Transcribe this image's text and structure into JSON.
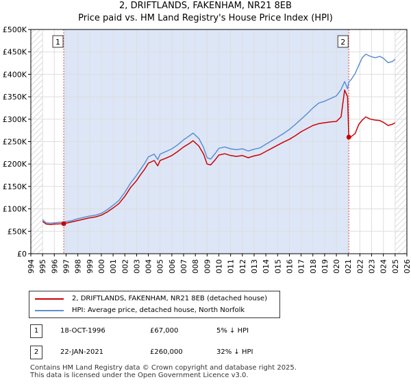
{
  "title_line1": "2, DRIFTLANDS, FAKENHAM, NR21 8EB",
  "title_line2": "Price paid vs. HM Land Registry's House Price Index (HPI)",
  "chart_data": {
    "type": "line",
    "title": "2, DRIFTLANDS, FAKENHAM, NR21 8EB — Price paid vs. HM Land Registry's House Price Index (HPI)",
    "xlim": [
      1994,
      2026
    ],
    "ylim": [
      0,
      500000
    ],
    "x_ticks": [
      "1994",
      "1995",
      "1996",
      "1997",
      "1998",
      "1999",
      "2000",
      "2001",
      "2002",
      "2003",
      "2004",
      "2005",
      "2006",
      "2007",
      "2008",
      "2009",
      "2010",
      "2011",
      "2012",
      "2013",
      "2014",
      "2015",
      "2016",
      "2017",
      "2018",
      "2019",
      "2020",
      "2021",
      "2022",
      "2023",
      "2024",
      "2025",
      "2026"
    ],
    "y_ticks": [
      {
        "value": 0,
        "label": "£0"
      },
      {
        "value": 50000,
        "label": "£50K"
      },
      {
        "value": 100000,
        "label": "£100K"
      },
      {
        "value": 150000,
        "label": "£150K"
      },
      {
        "value": 200000,
        "label": "£200K"
      },
      {
        "value": 250000,
        "label": "£250K"
      },
      {
        "value": 300000,
        "label": "£300K"
      },
      {
        "value": 350000,
        "label": "£350K"
      },
      {
        "value": 400000,
        "label": "£400K"
      },
      {
        "value": 450000,
        "label": "£450K"
      },
      {
        "value": 500000,
        "label": "£500K"
      }
    ],
    "colors": {
      "property": "#cc0000",
      "hpi": "#5b8fd0",
      "shade": "#dde6f7",
      "hatch": "#b5b5b5",
      "vline": "#e05050",
      "grid": "#dddddd"
    },
    "series": [
      {
        "name": "2, DRIFTLANDS, FAKENHAM, NR21 8EB (detached house)",
        "color": "#cc0000",
        "points": [
          [
            1995.0,
            72000
          ],
          [
            1995.3,
            66000
          ],
          [
            1995.7,
            65000
          ],
          [
            1996.0,
            66000
          ],
          [
            1996.4,
            66500
          ],
          [
            1996.8,
            67000
          ],
          [
            1997.5,
            71000
          ],
          [
            1998.0,
            74000
          ],
          [
            1998.5,
            77000
          ],
          [
            1999.0,
            80000
          ],
          [
            1999.5,
            82000
          ],
          [
            2000.0,
            86000
          ],
          [
            2000.5,
            93000
          ],
          [
            2001.0,
            102000
          ],
          [
            2001.5,
            112000
          ],
          [
            2002.0,
            128000
          ],
          [
            2002.5,
            148000
          ],
          [
            2003.0,
            163000
          ],
          [
            2003.3,
            175000
          ],
          [
            2003.7,
            189000
          ],
          [
            2004.0,
            202000
          ],
          [
            2004.5,
            208000
          ],
          [
            2004.8,
            196000
          ],
          [
            2005.0,
            208000
          ],
          [
            2005.5,
            213000
          ],
          [
            2006.0,
            219000
          ],
          [
            2006.5,
            228000
          ],
          [
            2007.0,
            238000
          ],
          [
            2007.5,
            246000
          ],
          [
            2007.8,
            252000
          ],
          [
            2008.3,
            240000
          ],
          [
            2008.7,
            222000
          ],
          [
            2009.0,
            200000
          ],
          [
            2009.3,
            198000
          ],
          [
            2009.7,
            210000
          ],
          [
            2010.0,
            220000
          ],
          [
            2010.5,
            223000
          ],
          [
            2011.0,
            219000
          ],
          [
            2011.5,
            217000
          ],
          [
            2012.0,
            219000
          ],
          [
            2012.5,
            214000
          ],
          [
            2013.0,
            218000
          ],
          [
            2013.5,
            221000
          ],
          [
            2014.0,
            228000
          ],
          [
            2014.5,
            235000
          ],
          [
            2015.0,
            242000
          ],
          [
            2015.5,
            249000
          ],
          [
            2016.0,
            255000
          ],
          [
            2016.5,
            263000
          ],
          [
            2017.0,
            272000
          ],
          [
            2017.5,
            279000
          ],
          [
            2018.0,
            286000
          ],
          [
            2018.5,
            290000
          ],
          [
            2019.0,
            292000
          ],
          [
            2019.5,
            294000
          ],
          [
            2020.0,
            295000
          ],
          [
            2020.4,
            305000
          ],
          [
            2020.7,
            365000
          ],
          [
            2020.95,
            350000
          ],
          [
            2021.06,
            260000
          ],
          [
            2021.3,
            262000
          ],
          [
            2021.6,
            268000
          ],
          [
            2021.9,
            288000
          ],
          [
            2022.2,
            298000
          ],
          [
            2022.5,
            305000
          ],
          [
            2022.9,
            300000
          ],
          [
            2023.3,
            298000
          ],
          [
            2023.7,
            297000
          ],
          [
            2024.0,
            293000
          ],
          [
            2024.4,
            286000
          ],
          [
            2024.8,
            289000
          ],
          [
            2025.0,
            292000
          ]
        ]
      },
      {
        "name": "HPI: Average price, detached house, North Norfolk",
        "color": "#5b8fd0",
        "points": [
          [
            1995.0,
            76000
          ],
          [
            1995.3,
            69000
          ],
          [
            1995.7,
            68000
          ],
          [
            1996.0,
            69000
          ],
          [
            1996.4,
            70000
          ],
          [
            1996.8,
            70500
          ],
          [
            1997.5,
            74000
          ],
          [
            1998.0,
            78000
          ],
          [
            1998.5,
            81000
          ],
          [
            1999.0,
            84000
          ],
          [
            1999.5,
            86000
          ],
          [
            2000.0,
            90000
          ],
          [
            2000.5,
            98000
          ],
          [
            2001.0,
            108000
          ],
          [
            2001.5,
            119000
          ],
          [
            2002.0,
            137000
          ],
          [
            2002.5,
            158000
          ],
          [
            2003.0,
            175000
          ],
          [
            2003.3,
            187000
          ],
          [
            2003.7,
            202000
          ],
          [
            2004.0,
            216000
          ],
          [
            2004.5,
            222000
          ],
          [
            2004.8,
            210000
          ],
          [
            2005.0,
            222000
          ],
          [
            2005.5,
            228000
          ],
          [
            2006.0,
            234000
          ],
          [
            2006.5,
            243000
          ],
          [
            2007.0,
            254000
          ],
          [
            2007.5,
            263000
          ],
          [
            2007.8,
            269000
          ],
          [
            2008.3,
            257000
          ],
          [
            2008.7,
            237000
          ],
          [
            2009.0,
            214000
          ],
          [
            2009.3,
            211000
          ],
          [
            2009.7,
            224000
          ],
          [
            2010.0,
            235000
          ],
          [
            2010.5,
            238000
          ],
          [
            2011.0,
            234000
          ],
          [
            2011.5,
            232000
          ],
          [
            2012.0,
            234000
          ],
          [
            2012.5,
            229000
          ],
          [
            2013.0,
            233000
          ],
          [
            2013.5,
            236000
          ],
          [
            2014.0,
            244000
          ],
          [
            2014.5,
            252000
          ],
          [
            2015.0,
            260000
          ],
          [
            2015.5,
            268000
          ],
          [
            2016.0,
            277000
          ],
          [
            2016.5,
            288000
          ],
          [
            2017.0,
            300000
          ],
          [
            2017.5,
            312000
          ],
          [
            2018.0,
            325000
          ],
          [
            2018.5,
            336000
          ],
          [
            2019.0,
            340000
          ],
          [
            2019.5,
            346000
          ],
          [
            2020.0,
            352000
          ],
          [
            2020.4,
            366000
          ],
          [
            2020.7,
            384000
          ],
          [
            2020.95,
            368000
          ],
          [
            2021.06,
            382000
          ],
          [
            2021.3,
            390000
          ],
          [
            2021.6,
            402000
          ],
          [
            2021.9,
            420000
          ],
          [
            2022.2,
            437000
          ],
          [
            2022.5,
            445000
          ],
          [
            2022.9,
            440000
          ],
          [
            2023.3,
            437000
          ],
          [
            2023.7,
            440000
          ],
          [
            2024.0,
            436000
          ],
          [
            2024.4,
            426000
          ],
          [
            2024.8,
            429000
          ],
          [
            2025.0,
            434000
          ]
        ]
      }
    ],
    "transactions": [
      {
        "id": "1",
        "year": 1996.8,
        "price": 67000
      },
      {
        "id": "2",
        "year": 2021.06,
        "price": 260000
      }
    ]
  },
  "legend": {
    "property_label": "2, DRIFTLANDS, FAKENHAM, NR21 8EB (detached house)",
    "hpi_label": "HPI: Average price, detached house, North Norfolk"
  },
  "transactions_table": [
    {
      "id": "1",
      "date": "18-OCT-1996",
      "price": "£67,000",
      "hpi": "5% ↓ HPI"
    },
    {
      "id": "2",
      "date": "22-JAN-2021",
      "price": "£260,000",
      "hpi": "32% ↓ HPI"
    }
  ],
  "footer": {
    "line1": "Contains HM Land Registry data © Crown copyright and database right 2025.",
    "line2": "This data is licensed under the Open Government Licence v3.0."
  }
}
